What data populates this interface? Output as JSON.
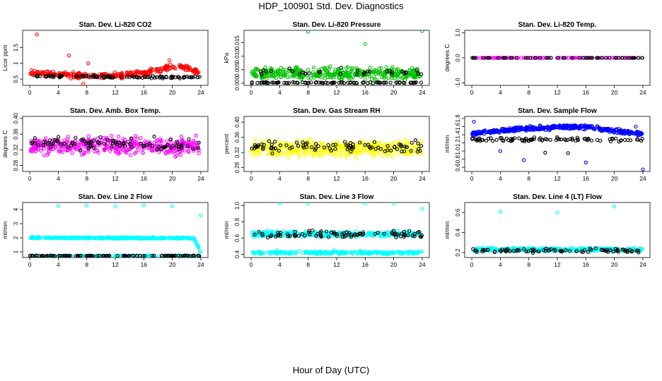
{
  "title": "HDP_100901  Std. Dev. Diagnostics",
  "xlabel": "Hour of Day (UTC)",
  "chart_data": [
    {
      "type": "scatter",
      "title": "Stan. Dev. Li-820 CO2",
      "ylabel": "Licor ppm",
      "xlim": [
        -1,
        25
      ],
      "ylim": [
        0.3,
        2.05
      ],
      "xticks": [
        0,
        4,
        8,
        12,
        16,
        20,
        24
      ],
      "yticks": [
        0.5,
        1.0,
        1.5
      ],
      "ytick_labels": [
        "0.5",
        "1",
        "1.5"
      ],
      "series": [
        {
          "color": "#ff0000",
          "band": [
            [
              0,
              0.72
            ],
            [
              4,
              0.64
            ],
            [
              8,
              0.6
            ],
            [
              12,
              0.62
            ],
            [
              16,
              0.68
            ],
            [
              18,
              0.8
            ],
            [
              20,
              0.9
            ],
            [
              22,
              0.88
            ],
            [
              24,
              0.65
            ]
          ],
          "spread": 0.13,
          "n": 300,
          "outliers": [
            [
              1.0,
              1.92
            ],
            [
              5.5,
              1.25
            ],
            [
              8.2,
              1.0
            ],
            [
              7.5,
              0.35
            ],
            [
              19.6,
              1.1
            ]
          ]
        },
        {
          "color": "#000000",
          "band": [
            [
              0,
              0.6
            ],
            [
              24,
              0.55
            ]
          ],
          "spread": 0.05,
          "n": 100
        }
      ]
    },
    {
      "type": "scatter",
      "title": "Stan. Dev. Li-820 Pressure",
      "ylabel": "kPa",
      "xlim": [
        -1,
        25
      ],
      "ylim": [
        -0.0008,
        0.0195
      ],
      "xticks": [
        0,
        4,
        8,
        12,
        16,
        20,
        24
      ],
      "yticks": [
        0.0,
        0.005,
        0.01,
        0.015
      ],
      "ytick_labels": [
        "0.000",
        "0.005",
        "0.010",
        "0.015"
      ],
      "series": [
        {
          "color": "#00c000",
          "band": [
            [
              0,
              0.0035
            ],
            [
              24,
              0.0035
            ]
          ],
          "spread": 0.0032,
          "n": 380,
          "outliers": [
            [
              8,
              0.019
            ],
            [
              16,
              0.0145
            ],
            [
              24,
              0.0192
            ]
          ]
        },
        {
          "color": "#000000",
          "band": [
            [
              0,
              0.0002
            ],
            [
              24,
              0.0002
            ]
          ],
          "spread": 0.0003,
          "n": 90
        },
        {
          "color": "#000000",
          "band": [
            [
              0,
              0.004
            ],
            [
              24,
              0.004
            ]
          ],
          "spread": 0.002,
          "n": 35
        }
      ]
    },
    {
      "type": "scatter",
      "title": "Stan. Dev. Li-820 Temp.",
      "ylabel": "degrees C",
      "xlim": [
        -1,
        25
      ],
      "ylim": [
        -1.1,
        1.1
      ],
      "xticks": [
        0,
        4,
        8,
        12,
        16,
        20,
        24
      ],
      "yticks": [
        -1.0,
        0.0,
        1.0
      ],
      "ytick_labels": [
        "-1.0",
        "0.0",
        "1.0"
      ],
      "series": [
        {
          "color": "#ff00ff",
          "band": [
            [
              0,
              0
            ],
            [
              24,
              0
            ]
          ],
          "spread": 0,
          "n": 120
        },
        {
          "color": "#000000",
          "band": [
            [
              0,
              0
            ],
            [
              24,
              0
            ]
          ],
          "spread": 0,
          "n": 60
        }
      ]
    },
    {
      "type": "scatter",
      "title": "Stan. Dev. Amb. Box Temp.",
      "ylabel": "degrees C",
      "xlim": [
        -1,
        25
      ],
      "ylim": [
        0.265,
        0.405
      ],
      "xticks": [
        0,
        4,
        8,
        12,
        16,
        20,
        24
      ],
      "yticks": [
        0.28,
        0.32,
        0.36,
        0.4
      ],
      "ytick_labels": [
        "0.28",
        "0.32",
        "0.36",
        "0.40"
      ],
      "series": [
        {
          "color": "#ff00ff",
          "band": [
            [
              0,
              0.33
            ],
            [
              24,
              0.33
            ]
          ],
          "spread": 0.032,
          "n": 420
        },
        {
          "color": "#000000",
          "band": [
            [
              0,
              0.335
            ],
            [
              24,
              0.335
            ]
          ],
          "spread": 0.024,
          "n": 90
        }
      ]
    },
    {
      "type": "scatter",
      "title": "Stan. Dev. Gas Stream RH",
      "ylabel": "percent",
      "xlim": [
        -1,
        25
      ],
      "ylim": [
        0.27,
        0.415
      ],
      "xticks": [
        0,
        4,
        8,
        12,
        16,
        20,
        24
      ],
      "yticks": [
        0.28,
        0.32,
        0.36,
        0.4
      ],
      "ytick_labels": [
        "0.28",
        "0.32",
        "0.36",
        "0.40"
      ],
      "series": [
        {
          "color": "#ffff00",
          "band": [
            [
              0,
              0.33
            ],
            [
              24,
              0.33
            ]
          ],
          "spread": 0.03,
          "n": 420
        },
        {
          "color": "#000000",
          "band": [
            [
              0,
              0.335
            ],
            [
              24,
              0.335
            ]
          ],
          "spread": 0.022,
          "n": 90
        }
      ]
    },
    {
      "type": "scatter",
      "title": "Stan. Dev. Sample Flow",
      "ylabel": "ml/min",
      "xlim": [
        -1,
        25
      ],
      "ylim": [
        0.5,
        1.85
      ],
      "xticks": [
        0,
        4,
        8,
        12,
        16,
        20,
        24
      ],
      "yticks": [
        0.6,
        0.8,
        1.0,
        1.2,
        1.4,
        1.6,
        1.8
      ],
      "ytick_labels": [
        "0.6",
        "0.8",
        "1.0",
        "1.2",
        "1.4",
        "1.6",
        "1.8"
      ],
      "series": [
        {
          "color": "#0000ff",
          "band": [
            [
              0,
              1.42
            ],
            [
              4,
              1.5
            ],
            [
              8,
              1.56
            ],
            [
              12,
              1.58
            ],
            [
              16,
              1.6
            ],
            [
              20,
              1.5
            ],
            [
              24,
              1.42
            ]
          ],
          "spread": 0.08,
          "n": 420,
          "outliers": [
            [
              0.3,
              1.72
            ],
            [
              4,
              1.0
            ],
            [
              7.3,
              0.78
            ],
            [
              16,
              0.72
            ],
            [
              24,
              0.55
            ],
            [
              23,
              1.6
            ]
          ]
        },
        {
          "color": "#000000",
          "band": [
            [
              0,
              1.28
            ],
            [
              24,
              1.28
            ]
          ],
          "spread": 0.07,
          "n": 90,
          "outliers": [
            [
              10.3,
              0.96
            ],
            [
              13.5,
              0.95
            ]
          ]
        }
      ]
    },
    {
      "type": "scatter",
      "title": "Stan. Dev. Line 2 Flow",
      "ylabel": "ml/min",
      "xlim": [
        -1,
        25
      ],
      "ylim": [
        0.6,
        4.5
      ],
      "xticks": [
        0,
        4,
        8,
        12,
        16,
        20,
        24
      ],
      "yticks": [
        1,
        2,
        3,
        4
      ],
      "ytick_labels": [
        "1",
        "2",
        "3",
        "4"
      ],
      "series": [
        {
          "color": "#00ffff",
          "band": [
            [
              0,
              2.0
            ],
            [
              23,
              1.98
            ],
            [
              23.6,
              1.4
            ],
            [
              24,
              0.9
            ]
          ],
          "spread": 0.08,
          "n": 440,
          "outliers": [
            [
              4,
              4.25
            ],
            [
              8,
              4.28
            ],
            [
              12,
              4.22
            ],
            [
              16,
              4.3
            ],
            [
              20,
              4.25
            ],
            [
              24,
              3.6
            ]
          ]
        },
        {
          "color": "#00ffff",
          "band": [
            [
              0,
              0.72
            ],
            [
              24,
              0.72
            ]
          ],
          "spread": 0.05,
          "n": 150
        },
        {
          "color": "#000000",
          "band": [
            [
              0,
              0.72
            ],
            [
              24,
              0.72
            ]
          ],
          "spread": 0.04,
          "n": 110
        }
      ]
    },
    {
      "type": "scatter",
      "title": "Stan. Dev. Line 3 Flow",
      "ylabel": "ml/min",
      "xlim": [
        -1,
        25
      ],
      "ylim": [
        0.36,
        1.04
      ],
      "xticks": [
        0,
        4,
        8,
        12,
        16,
        20,
        24
      ],
      "yticks": [
        0.4,
        0.6,
        0.8,
        1.0
      ],
      "ytick_labels": [
        "0.4",
        "0.6",
        "0.8",
        "1.0"
      ],
      "series": [
        {
          "color": "#00ffff",
          "band": [
            [
              0,
              0.65
            ],
            [
              24,
              0.65
            ]
          ],
          "spread": 0.05,
          "n": 320,
          "outliers": [
            [
              4,
              1.03
            ],
            [
              8,
              1.03
            ],
            [
              16,
              1.03
            ],
            [
              20,
              1.03
            ],
            [
              24,
              0.96
            ]
          ]
        },
        {
          "color": "#00ffff",
          "band": [
            [
              0,
              0.42
            ],
            [
              24,
              0.42
            ]
          ],
          "spread": 0.03,
          "n": 260
        },
        {
          "color": "#000000",
          "band": [
            [
              0,
              0.65
            ],
            [
              24,
              0.65
            ]
          ],
          "spread": 0.06,
          "n": 90
        }
      ]
    },
    {
      "type": "scatter",
      "title": "Stan. Dev. Line 4 (LT) Flow",
      "ylabel": "ml/min",
      "xlim": [
        -1,
        25
      ],
      "ylim": [
        0.15,
        0.7
      ],
      "xticks": [
        0,
        4,
        8,
        12,
        16,
        20,
        24
      ],
      "yticks": [
        0.2,
        0.4,
        0.6
      ],
      "ytick_labels": [
        "0.2",
        "0.4",
        "0.6"
      ],
      "series": [
        {
          "color": "#00ffff",
          "band": [
            [
              0,
              0.23
            ],
            [
              24,
              0.23
            ]
          ],
          "spread": 0.025,
          "n": 380,
          "outliers": [
            [
              4,
              0.61
            ],
            [
              12,
              0.6
            ],
            [
              20,
              0.66
            ]
          ]
        },
        {
          "color": "#000000",
          "band": [
            [
              0,
              0.22
            ],
            [
              24,
              0.22
            ]
          ],
          "spread": 0.03,
          "n": 90
        }
      ]
    }
  ]
}
